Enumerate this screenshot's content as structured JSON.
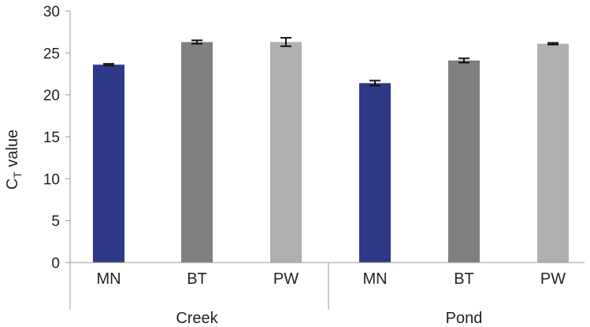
{
  "chart_data": {
    "type": "bar",
    "title": "",
    "ylabel": "C",
    "ylabel_subscript": "T",
    "ylabel_suffix": " value",
    "ylim": [
      0,
      30
    ],
    "yticks": [
      "0",
      "5",
      "10",
      "15",
      "20",
      "25",
      "30"
    ],
    "grid": false,
    "groups": [
      "Creek",
      "Pond"
    ],
    "bars": [
      {
        "group": "Creek",
        "category": "MN",
        "value": 23.6,
        "error": 0.1,
        "color": "#2e3a87"
      },
      {
        "group": "Creek",
        "category": "BT",
        "value": 26.3,
        "error": 0.2,
        "color": "#808080"
      },
      {
        "group": "Creek",
        "category": "PW",
        "value": 26.3,
        "error": 0.5,
        "color": "#b0b0b0"
      },
      {
        "group": "Pond",
        "category": "MN",
        "value": 21.4,
        "error": 0.3,
        "color": "#2e3a87"
      },
      {
        "group": "Pond",
        "category": "BT",
        "value": 24.1,
        "error": 0.25,
        "color": "#808080"
      },
      {
        "group": "Pond",
        "category": "PW",
        "value": 26.1,
        "error": 0.1,
        "color": "#b0b0b0"
      }
    ]
  }
}
